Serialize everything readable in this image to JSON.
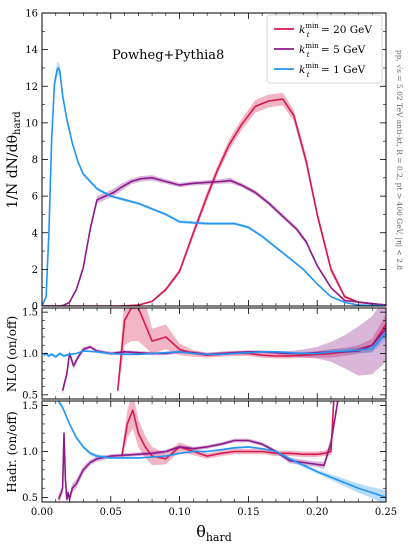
{
  "chart_data": [
    {
      "type": "line",
      "panel": "main",
      "ylabel": "1/N dN/dθhard",
      "ylabel_parts": {
        "pre": "1/N dN/dθ",
        "sub": "hard"
      },
      "ylim": [
        0,
        16
      ],
      "yticks": [
        "0",
        "2",
        "4",
        "6",
        "8",
        "10",
        "12",
        "14",
        "16"
      ],
      "annotation": "Powheg+Pythia8",
      "side_text": "pp, √s = 5.02 TeV anti-kt, R = 0.2, pt > 400 GeV, |η| < 2.8",
      "legend_position": "top-right",
      "series": [
        {
          "name": "k_t^min = 20 GeV",
          "legend_label": {
            "k": "k",
            "sup": "min",
            "sub": "t",
            "rest": " = 20 GeV"
          },
          "color": "#d6184d",
          "x": [
            0.0,
            0.055,
            0.064,
            0.07,
            0.08,
            0.09,
            0.1,
            0.11,
            0.12,
            0.128,
            0.136,
            0.145,
            0.155,
            0.165,
            0.175,
            0.183,
            0.192,
            0.2,
            0.21,
            0.22,
            0.23,
            0.25
          ],
          "y": [
            0,
            0,
            0.02,
            0.05,
            0.25,
            0.9,
            1.9,
            4.0,
            6.0,
            7.5,
            8.8,
            9.9,
            10.9,
            11.2,
            11.3,
            10.4,
            7.9,
            5.0,
            2.0,
            0.5,
            0.2,
            0.05
          ],
          "band": [
            0,
            0,
            0.02,
            0.05,
            0.05,
            0.1,
            0.15,
            0.2,
            0.25,
            0.25,
            0.3,
            0.3,
            0.35,
            0.35,
            0.35,
            0.3,
            0.3,
            0.25,
            0.2,
            0.1,
            0.05,
            0.03
          ]
        },
        {
          "name": "k_t^min = 5 GeV",
          "legend_label": {
            "k": "k",
            "sup": "min",
            "sub": "t",
            "rest": " = 5 GeV"
          },
          "color": "#8b1b8b",
          "x": [
            0.0,
            0.013,
            0.016,
            0.02,
            0.025,
            0.03,
            0.035,
            0.04,
            0.046,
            0.052,
            0.058,
            0.065,
            0.072,
            0.08,
            0.09,
            0.1,
            0.11,
            0.12,
            0.13,
            0.137,
            0.145,
            0.155,
            0.165,
            0.175,
            0.185,
            0.192,
            0.2,
            0.21,
            0.22,
            0.25
          ],
          "y": [
            0,
            0,
            0.05,
            0.2,
            0.9,
            2.1,
            4.2,
            5.8,
            6.0,
            6.2,
            6.5,
            6.8,
            6.95,
            7.0,
            6.8,
            6.6,
            6.7,
            6.75,
            6.8,
            6.85,
            6.6,
            6.2,
            5.6,
            4.9,
            4.2,
            3.5,
            2.2,
            1.0,
            0.3,
            0.05
          ],
          "band": [
            0,
            0,
            0.02,
            0.05,
            0.1,
            0.15,
            0.2,
            0.2,
            0.2,
            0.2,
            0.2,
            0.15,
            0.15,
            0.15,
            0.12,
            0.12,
            0.12,
            0.12,
            0.12,
            0.15,
            0.12,
            0.12,
            0.12,
            0.12,
            0.12,
            0.12,
            0.1,
            0.05,
            0.03,
            0.02
          ]
        },
        {
          "name": "k_t^min = 1 GeV",
          "legend_label": {
            "k": "k",
            "sup": "min",
            "sub": "t",
            "rest": " = 1 GeV"
          },
          "color": "#2196f3",
          "x": [
            0.0,
            0.003,
            0.005,
            0.007,
            0.009,
            0.011,
            0.012,
            0.013,
            0.015,
            0.018,
            0.022,
            0.026,
            0.03,
            0.035,
            0.04,
            0.045,
            0.05,
            0.06,
            0.07,
            0.08,
            0.09,
            0.1,
            0.11,
            0.12,
            0.13,
            0.14,
            0.15,
            0.16,
            0.17,
            0.18,
            0.19,
            0.2,
            0.21,
            0.22,
            0.23,
            0.25
          ],
          "y": [
            0,
            0.5,
            4.0,
            9.0,
            12.1,
            12.9,
            13.0,
            12.8,
            11.5,
            10.2,
            8.9,
            7.9,
            7.2,
            6.8,
            6.4,
            6.2,
            6.0,
            5.8,
            5.6,
            5.3,
            5.0,
            4.6,
            4.55,
            4.5,
            4.5,
            4.5,
            4.3,
            3.8,
            3.2,
            2.6,
            2.0,
            1.2,
            0.5,
            0.2,
            0.05,
            0.01
          ],
          "band": [
            0,
            0.1,
            0.2,
            0.25,
            0.3,
            0.35,
            0.35,
            0.3,
            0.25,
            0.2,
            0.15,
            0.12,
            0.1,
            0.1,
            0.08,
            0.08,
            0.08,
            0.08,
            0.08,
            0.08,
            0.08,
            0.08,
            0.08,
            0.08,
            0.08,
            0.08,
            0.08,
            0.08,
            0.08,
            0.06,
            0.06,
            0.05,
            0.03,
            0.02,
            0.01,
            0.0
          ]
        }
      ]
    },
    {
      "type": "line",
      "panel": "ratio-nlo",
      "ylabel": "NLO (on/off)",
      "ylim": [
        0.45,
        1.55
      ],
      "yticks": [
        "0.5",
        "1.0",
        "1.5"
      ],
      "series": [
        {
          "name": "k_t^min = 20 GeV",
          "color": "#d6184d",
          "x": [
            0.055,
            0.06,
            0.065,
            0.07,
            0.08,
            0.09,
            0.1,
            0.11,
            0.12,
            0.13,
            0.14,
            0.15,
            0.16,
            0.17,
            0.18,
            0.19,
            0.2,
            0.21,
            0.22,
            0.23,
            0.24,
            0.25
          ],
          "y": [
            0.55,
            1.4,
            1.55,
            1.55,
            1.15,
            1.2,
            1.05,
            1.0,
            0.98,
            0.99,
            1.0,
            1.0,
            0.98,
            0.97,
            0.97,
            0.98,
            0.99,
            1.0,
            1.02,
            1.05,
            1.1,
            1.35
          ],
          "band": [
            0.05,
            0.3,
            0.4,
            0.4,
            0.15,
            0.15,
            0.07,
            0.04,
            0.03,
            0.03,
            0.03,
            0.03,
            0.03,
            0.03,
            0.03,
            0.03,
            0.04,
            0.05,
            0.05,
            0.05,
            0.08,
            0.12
          ]
        },
        {
          "name": "k_t^min = 5 GeV",
          "color": "#8b1b8b",
          "x": [
            0.015,
            0.018,
            0.02,
            0.023,
            0.026,
            0.03,
            0.035,
            0.04,
            0.05,
            0.06,
            0.07,
            0.08,
            0.09,
            0.1,
            0.11,
            0.12,
            0.13,
            0.14,
            0.15,
            0.16,
            0.17,
            0.18,
            0.19,
            0.2,
            0.21,
            0.22,
            0.23,
            0.24,
            0.25
          ],
          "y": [
            0.55,
            0.75,
            1.0,
            0.85,
            0.95,
            1.05,
            1.08,
            1.03,
            1.0,
            1.02,
            1.01,
            1.0,
            1.0,
            1.02,
            1.01,
            0.99,
            1.0,
            1.01,
            1.02,
            1.02,
            1.01,
            1.0,
            1.0,
            1.01,
            1.02,
            1.02,
            1.03,
            1.1,
            1.3
          ],
          "band": [
            0.05,
            0.05,
            0.04,
            0.04,
            0.03,
            0.03,
            0.02,
            0.02,
            0.02,
            0.02,
            0.02,
            0.02,
            0.02,
            0.02,
            0.02,
            0.02,
            0.02,
            0.02,
            0.02,
            0.02,
            0.02,
            0.03,
            0.05,
            0.07,
            0.12,
            0.2,
            0.3,
            0.35,
            0.4
          ]
        },
        {
          "name": "k_t^min = 1 GeV",
          "color": "#2196f3",
          "x": [
            0.001,
            0.003,
            0.005,
            0.007,
            0.01,
            0.013,
            0.016,
            0.02,
            0.025,
            0.03,
            0.04,
            0.05,
            0.06,
            0.07,
            0.08,
            0.09,
            0.1,
            0.11,
            0.12,
            0.13,
            0.14,
            0.15,
            0.16,
            0.17,
            0.18,
            0.19,
            0.2,
            0.21,
            0.22,
            0.23,
            0.24,
            0.25
          ],
          "y": [
            0.98,
            1.0,
            0.97,
            0.99,
            0.96,
            1.0,
            0.97,
            0.99,
            1.0,
            1.03,
            1.02,
            1.0,
            0.99,
            0.99,
            1.0,
            1.01,
            1.02,
            1.0,
            0.99,
            0.99,
            1.0,
            1.01,
            1.02,
            1.02,
            1.01,
            1.0,
            1.0,
            1.02,
            1.03,
            1.04,
            1.06,
            1.25
          ],
          "band": [
            0.02,
            0.02,
            0.02,
            0.02,
            0.02,
            0.02,
            0.02,
            0.01,
            0.01,
            0.01,
            0.01,
            0.01,
            0.01,
            0.01,
            0.01,
            0.01,
            0.01,
            0.01,
            0.01,
            0.01,
            0.01,
            0.01,
            0.01,
            0.01,
            0.01,
            0.02,
            0.02,
            0.03,
            0.03,
            0.04,
            0.05,
            0.08
          ]
        }
      ]
    },
    {
      "type": "line",
      "panel": "ratio-hadr",
      "ylabel": "Hadr. (on/off)",
      "xlabel": "θhard",
      "xlabel_parts": {
        "pre": "θ",
        "sub": "hard"
      },
      "ylim": [
        0.45,
        1.55
      ],
      "yticks": [
        "0.5",
        "1.0",
        "1.5"
      ],
      "xlim": [
        0,
        0.25
      ],
      "xticks": [
        "0.00",
        "0.05",
        "0.10",
        "0.15",
        "0.20",
        "0.25"
      ],
      "series": [
        {
          "name": "k_t^min = 20 GeV",
          "color": "#d6184d",
          "x": [
            0.058,
            0.062,
            0.066,
            0.07,
            0.075,
            0.08,
            0.09,
            0.1,
            0.11,
            0.12,
            0.13,
            0.14,
            0.15,
            0.16,
            0.17,
            0.18,
            0.19,
            0.2,
            0.205,
            0.21,
            0.212
          ],
          "y": [
            0.95,
            1.3,
            1.45,
            1.2,
            1.05,
            0.95,
            0.92,
            1.05,
            1.0,
            0.95,
            0.98,
            1.0,
            1.0,
            1.0,
            0.98,
            0.98,
            0.97,
            0.97,
            0.98,
            1.0,
            1.55
          ],
          "band": [
            0.05,
            0.15,
            0.2,
            0.15,
            0.12,
            0.1,
            0.06,
            0.05,
            0.04,
            0.03,
            0.03,
            0.03,
            0.03,
            0.03,
            0.03,
            0.03,
            0.03,
            0.03,
            0.03,
            0.04,
            0.05
          ]
        },
        {
          "name": "k_t^min = 5 GeV",
          "color": "#8b1b8b",
          "x": [
            0.012,
            0.014,
            0.015,
            0.016,
            0.017,
            0.018,
            0.019,
            0.02,
            0.022,
            0.025,
            0.03,
            0.035,
            0.04,
            0.05,
            0.06,
            0.07,
            0.08,
            0.09,
            0.1,
            0.11,
            0.12,
            0.13,
            0.14,
            0.15,
            0.16,
            0.17,
            0.18,
            0.19,
            0.2,
            0.205,
            0.21,
            0.215
          ],
          "y": [
            0.48,
            0.55,
            0.6,
            1.2,
            0.7,
            0.48,
            0.55,
            0.48,
            0.6,
            0.65,
            0.8,
            0.88,
            0.92,
            0.95,
            0.96,
            0.97,
            0.98,
            1.0,
            1.05,
            1.03,
            1.05,
            1.08,
            1.12,
            1.12,
            1.08,
            1.0,
            0.9,
            0.88,
            0.86,
            0.85,
            1.1,
            1.55
          ],
          "band": [
            0.05,
            0.05,
            0.05,
            0.05,
            0.05,
            0.05,
            0.05,
            0.05,
            0.05,
            0.05,
            0.04,
            0.03,
            0.03,
            0.02,
            0.02,
            0.02,
            0.02,
            0.02,
            0.02,
            0.02,
            0.02,
            0.02,
            0.02,
            0.02,
            0.02,
            0.02,
            0.03,
            0.03,
            0.03,
            0.04,
            0.05,
            0.05
          ]
        },
        {
          "name": "k_t^min = 1 GeV",
          "color": "#2196f3",
          "x": [
            0.012,
            0.015,
            0.02,
            0.025,
            0.03,
            0.035,
            0.04,
            0.05,
            0.06,
            0.07,
            0.08,
            0.09,
            0.1,
            0.11,
            0.12,
            0.13,
            0.14,
            0.15,
            0.16,
            0.17,
            0.18,
            0.19,
            0.2,
            0.21,
            0.22,
            0.23,
            0.24,
            0.25
          ],
          "y": [
            1.55,
            1.48,
            1.3,
            1.15,
            1.05,
            0.98,
            0.95,
            0.93,
            0.93,
            0.93,
            0.94,
            0.95,
            0.98,
            1.0,
            1.0,
            1.02,
            1.04,
            1.05,
            1.03,
            1.0,
            0.92,
            0.85,
            0.78,
            0.72,
            0.66,
            0.6,
            0.55,
            0.5
          ],
          "band": [
            0.03,
            0.02,
            0.02,
            0.02,
            0.02,
            0.02,
            0.02,
            0.01,
            0.01,
            0.01,
            0.01,
            0.01,
            0.01,
            0.01,
            0.01,
            0.01,
            0.01,
            0.01,
            0.01,
            0.01,
            0.02,
            0.02,
            0.02,
            0.03,
            0.04,
            0.05,
            0.06,
            0.08
          ]
        }
      ]
    }
  ]
}
